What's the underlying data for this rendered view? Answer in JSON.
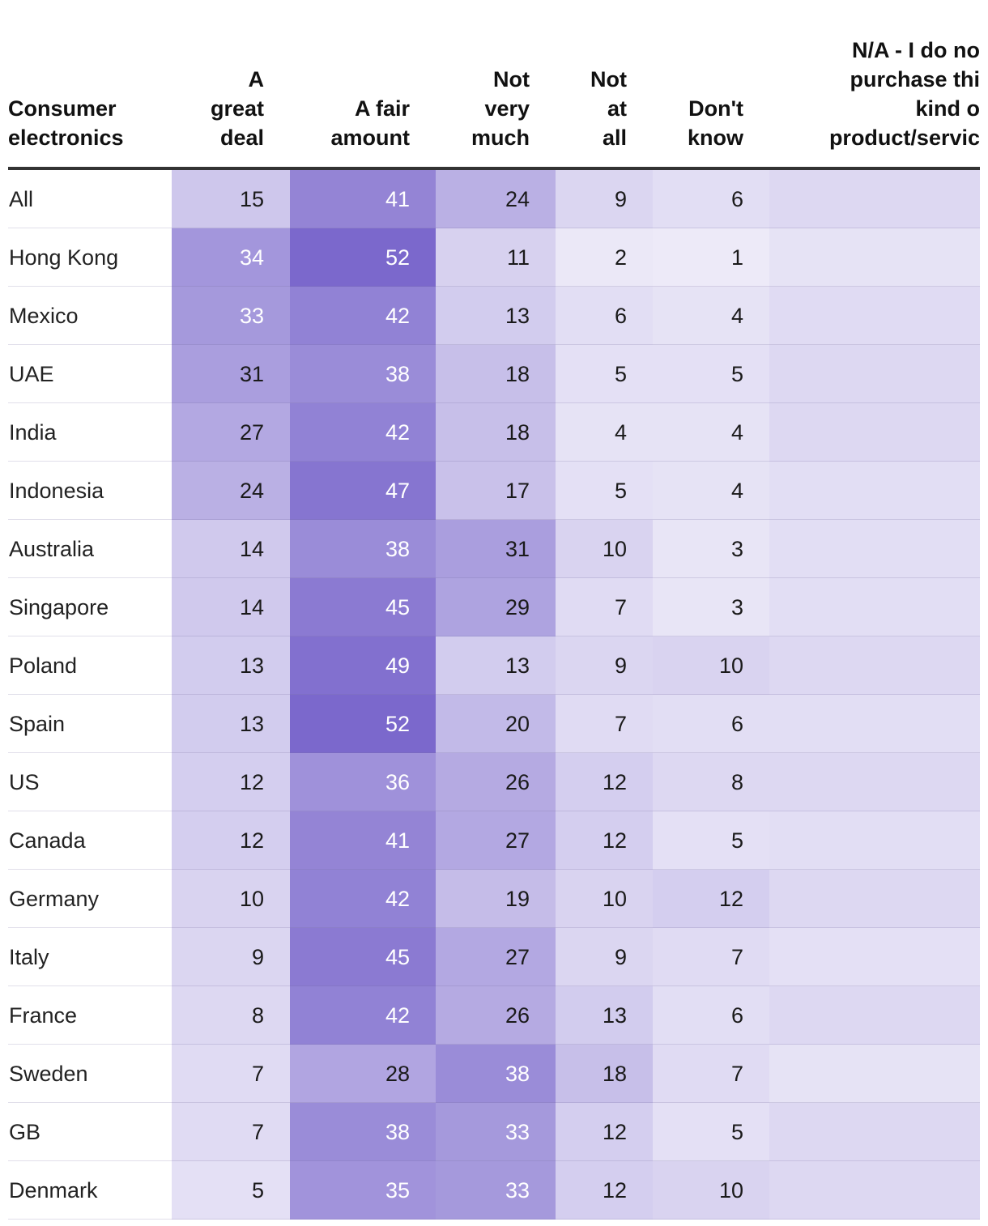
{
  "chart_data": {
    "type": "table",
    "title": "Consumer electronics",
    "columns": [
      "A\ngreat\ndeal",
      "A fair\namount",
      "Not\nvery\nmuch",
      "Not\nat\nall",
      "Don't\nknow",
      "N/A - I do no\npurchase thi\nkind o\nproduct/servic"
    ],
    "rows": [
      {
        "name": "All",
        "values": [
          15,
          41,
          24,
          9,
          6,
          null
        ]
      },
      {
        "name": "Hong Kong",
        "values": [
          34,
          52,
          11,
          2,
          1,
          null
        ]
      },
      {
        "name": "Mexico",
        "values": [
          33,
          42,
          13,
          6,
          4,
          null
        ]
      },
      {
        "name": "UAE",
        "values": [
          31,
          38,
          18,
          5,
          5,
          null
        ]
      },
      {
        "name": "India",
        "values": [
          27,
          42,
          18,
          4,
          4,
          null
        ]
      },
      {
        "name": "Indonesia",
        "values": [
          24,
          47,
          17,
          5,
          4,
          null
        ]
      },
      {
        "name": "Australia",
        "values": [
          14,
          38,
          31,
          10,
          3,
          null
        ]
      },
      {
        "name": "Singapore",
        "values": [
          14,
          45,
          29,
          7,
          3,
          null
        ]
      },
      {
        "name": "Poland",
        "values": [
          13,
          49,
          13,
          9,
          10,
          null
        ]
      },
      {
        "name": "Spain",
        "values": [
          13,
          52,
          20,
          7,
          6,
          null
        ]
      },
      {
        "name": "US",
        "values": [
          12,
          36,
          26,
          12,
          8,
          null
        ]
      },
      {
        "name": "Canada",
        "values": [
          12,
          41,
          27,
          12,
          5,
          null
        ]
      },
      {
        "name": "Germany",
        "values": [
          10,
          42,
          19,
          10,
          12,
          null
        ]
      },
      {
        "name": "Italy",
        "values": [
          9,
          45,
          27,
          9,
          7,
          null
        ]
      },
      {
        "name": "France",
        "values": [
          8,
          42,
          26,
          13,
          6,
          null
        ]
      },
      {
        "name": "Sweden",
        "values": [
          7,
          28,
          38,
          18,
          7,
          null
        ]
      },
      {
        "name": "GB",
        "values": [
          7,
          38,
          33,
          12,
          5,
          null
        ]
      },
      {
        "name": "Denmark",
        "values": [
          5,
          35,
          33,
          12,
          10,
          null
        ]
      }
    ],
    "na_column_shading": [
      8,
      4,
      7,
      8,
      8,
      6,
      6,
      6,
      8,
      6,
      8,
      6,
      8,
      5,
      8,
      4,
      8,
      8
    ],
    "colors": {
      "scale_high": "#7b68cc",
      "scale_low": "#ffffff",
      "text_dark": "#1a1a1a",
      "text_light": "#ffffff"
    }
  }
}
